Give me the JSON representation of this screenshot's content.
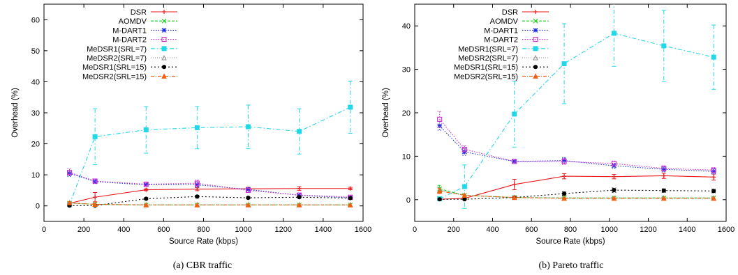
{
  "chart_data": [
    {
      "type": "line",
      "caption": "(a) CBR traffic",
      "xlabel": "Source Rate (kbps)",
      "ylabel": "Overhead (%)",
      "xlim": [
        0,
        1600
      ],
      "ylim": [
        -5,
        65
      ],
      "xticks": [
        0,
        200,
        400,
        600,
        800,
        1000,
        1200,
        1400,
        1600
      ],
      "yticks": [
        0,
        10,
        20,
        30,
        40,
        50,
        60
      ],
      "x": [
        128,
        256,
        512,
        768,
        1024,
        1280,
        1536
      ],
      "legend_position": "top-right",
      "grid": false,
      "series": [
        {
          "name": "DSR",
          "color": "#e8181c",
          "dash": "",
          "marker": "plus",
          "values": [
            0.8,
            2.8,
            5.2,
            5.4,
            5.5,
            5.6,
            5.6
          ],
          "errors": [
            0.5,
            1.5,
            0.3,
            0.5,
            0.5,
            0.6,
            0.4
          ]
        },
        {
          "name": "AOMDV",
          "color": "#22cc22",
          "dash": "4,2",
          "marker": "cross",
          "values": [
            0.9,
            0.5,
            0.3,
            0.3,
            0.3,
            0.3,
            0.3
          ],
          "errors": [
            0.3,
            0.2,
            0.1,
            0.1,
            0.1,
            0.1,
            0.1
          ]
        },
        {
          "name": "M-DART1",
          "color": "#1a2ee8",
          "dash": "1.5,2",
          "marker": "star",
          "values": [
            10.5,
            7.8,
            6.8,
            6.8,
            5.3,
            3.4,
            2.6
          ],
          "errors": [
            1.0,
            0.6,
            0.4,
            0.8,
            0.6,
            0.4,
            0.5
          ]
        },
        {
          "name": "M-DART2",
          "color": "#d030d0",
          "dash": "1.5,2",
          "marker": "square",
          "values": [
            10.8,
            8.0,
            7.0,
            7.3,
            5.0,
            3.5,
            2.8
          ],
          "errors": [
            1.1,
            0.7,
            0.5,
            1.0,
            0.7,
            0.5,
            0.6
          ]
        },
        {
          "name": "MeDSR1(SRL=7)",
          "color": "#20d8e8",
          "dash": "6,3,1.5,3",
          "marker": "fsquare",
          "values": [
            0.4,
            22.3,
            24.5,
            25.2,
            25.5,
            24.0,
            31.8
          ],
          "errors": [
            0.3,
            9.0,
            7.5,
            6.8,
            7.0,
            7.3,
            8.4
          ]
        },
        {
          "name": "MeDSR2(SRL=7)",
          "color": "#909090",
          "dash": "1,2",
          "marker": "triangle",
          "values": [
            0.9,
            0.5,
            0.4,
            0.4,
            0.4,
            0.4,
            0.4
          ],
          "errors": [
            0.3,
            0.2,
            0.1,
            0.1,
            0.1,
            0.1,
            0.1
          ]
        },
        {
          "name": "MeDSR1(SRL=15)",
          "color": "#000000",
          "dash": "2,3",
          "marker": "circle",
          "values": [
            0.1,
            0.1,
            2.3,
            3.0,
            2.6,
            2.8,
            2.5
          ],
          "errors": [
            0.1,
            0.1,
            0.3,
            0.4,
            0.3,
            0.3,
            0.3
          ]
        },
        {
          "name": "MeDSR2(SRL=15)",
          "color": "#f06010",
          "dash": "5,2,1,2",
          "marker": "ftriangle",
          "values": [
            1.0,
            0.5,
            0.3,
            0.3,
            0.3,
            0.3,
            0.3
          ],
          "errors": [
            0.3,
            0.2,
            0.1,
            0.1,
            0.1,
            0.1,
            0.1
          ]
        }
      ]
    },
    {
      "type": "line",
      "caption": "(b) Pareto traffic",
      "xlabel": "Source Rate (kbps)",
      "ylabel": "Overhead (%)",
      "xlim": [
        0,
        1600
      ],
      "ylim": [
        -5,
        45
      ],
      "xticks": [
        0,
        200,
        400,
        600,
        800,
        1000,
        1200,
        1400,
        1600
      ],
      "yticks": [
        0,
        10,
        20,
        30,
        40
      ],
      "x": [
        128,
        256,
        512,
        768,
        1024,
        1280,
        1536
      ],
      "legend_position": "top-left",
      "grid": false,
      "series": [
        {
          "name": "DSR",
          "color": "#e8181c",
          "dash": "",
          "marker": "plus",
          "values": [
            0.1,
            0.3,
            3.5,
            5.4,
            5.3,
            5.5,
            5.2
          ],
          "errors": [
            0.1,
            0.2,
            1.2,
            0.6,
            0.5,
            0.6,
            0.7
          ]
        },
        {
          "name": "AOMDV",
          "color": "#22cc22",
          "dash": "4,2",
          "marker": "cross",
          "values": [
            2.5,
            1.0,
            0.5,
            0.4,
            0.4,
            0.4,
            0.4
          ],
          "errors": [
            0.8,
            0.3,
            0.2,
            0.1,
            0.1,
            0.1,
            0.1
          ]
        },
        {
          "name": "M-DART1",
          "color": "#1a2ee8",
          "dash": "1.5,2",
          "marker": "star",
          "values": [
            17.0,
            11.0,
            8.8,
            9.0,
            7.8,
            7.0,
            6.5
          ],
          "errors": [
            1.0,
            0.8,
            0.5,
            0.7,
            0.6,
            0.6,
            0.6
          ]
        },
        {
          "name": "M-DART2",
          "color": "#d030d0",
          "dash": "1.5,2",
          "marker": "square",
          "values": [
            18.5,
            11.6,
            8.8,
            8.8,
            8.3,
            7.2,
            6.8
          ],
          "errors": [
            1.8,
            0.8,
            0.5,
            0.7,
            0.6,
            0.6,
            0.6
          ]
        },
        {
          "name": "MeDSR1(SRL=7)",
          "color": "#20d8e8",
          "dash": "6,3,1.5,3",
          "marker": "fsquare",
          "values": [
            0.2,
            3.0,
            19.7,
            31.3,
            38.3,
            35.4,
            32.8
          ],
          "errors": [
            0.2,
            5.0,
            7.6,
            9.2,
            7.6,
            8.2,
            7.4
          ]
        },
        {
          "name": "MeDSR2(SRL=7)",
          "color": "#909090",
          "dash": "1,2",
          "marker": "triangle",
          "values": [
            2.2,
            1.0,
            0.5,
            0.4,
            0.4,
            0.4,
            0.4
          ],
          "errors": [
            0.6,
            0.3,
            0.2,
            0.1,
            0.1,
            0.1,
            0.1
          ]
        },
        {
          "name": "MeDSR1(SRL=15)",
          "color": "#000000",
          "dash": "2,3",
          "marker": "circle",
          "values": [
            0.1,
            0.1,
            0.5,
            1.4,
            2.2,
            2.1,
            2.0
          ],
          "errors": [
            0.1,
            0.1,
            0.2,
            0.4,
            0.5,
            0.4,
            0.4
          ]
        },
        {
          "name": "MeDSR2(SRL=15)",
          "color": "#f06010",
          "dash": "5,2,1,2",
          "marker": "ftriangle",
          "values": [
            2.0,
            1.0,
            0.5,
            0.3,
            0.3,
            0.3,
            0.3
          ],
          "errors": [
            0.6,
            0.3,
            0.2,
            0.1,
            0.1,
            0.1,
            0.1
          ]
        }
      ]
    }
  ]
}
